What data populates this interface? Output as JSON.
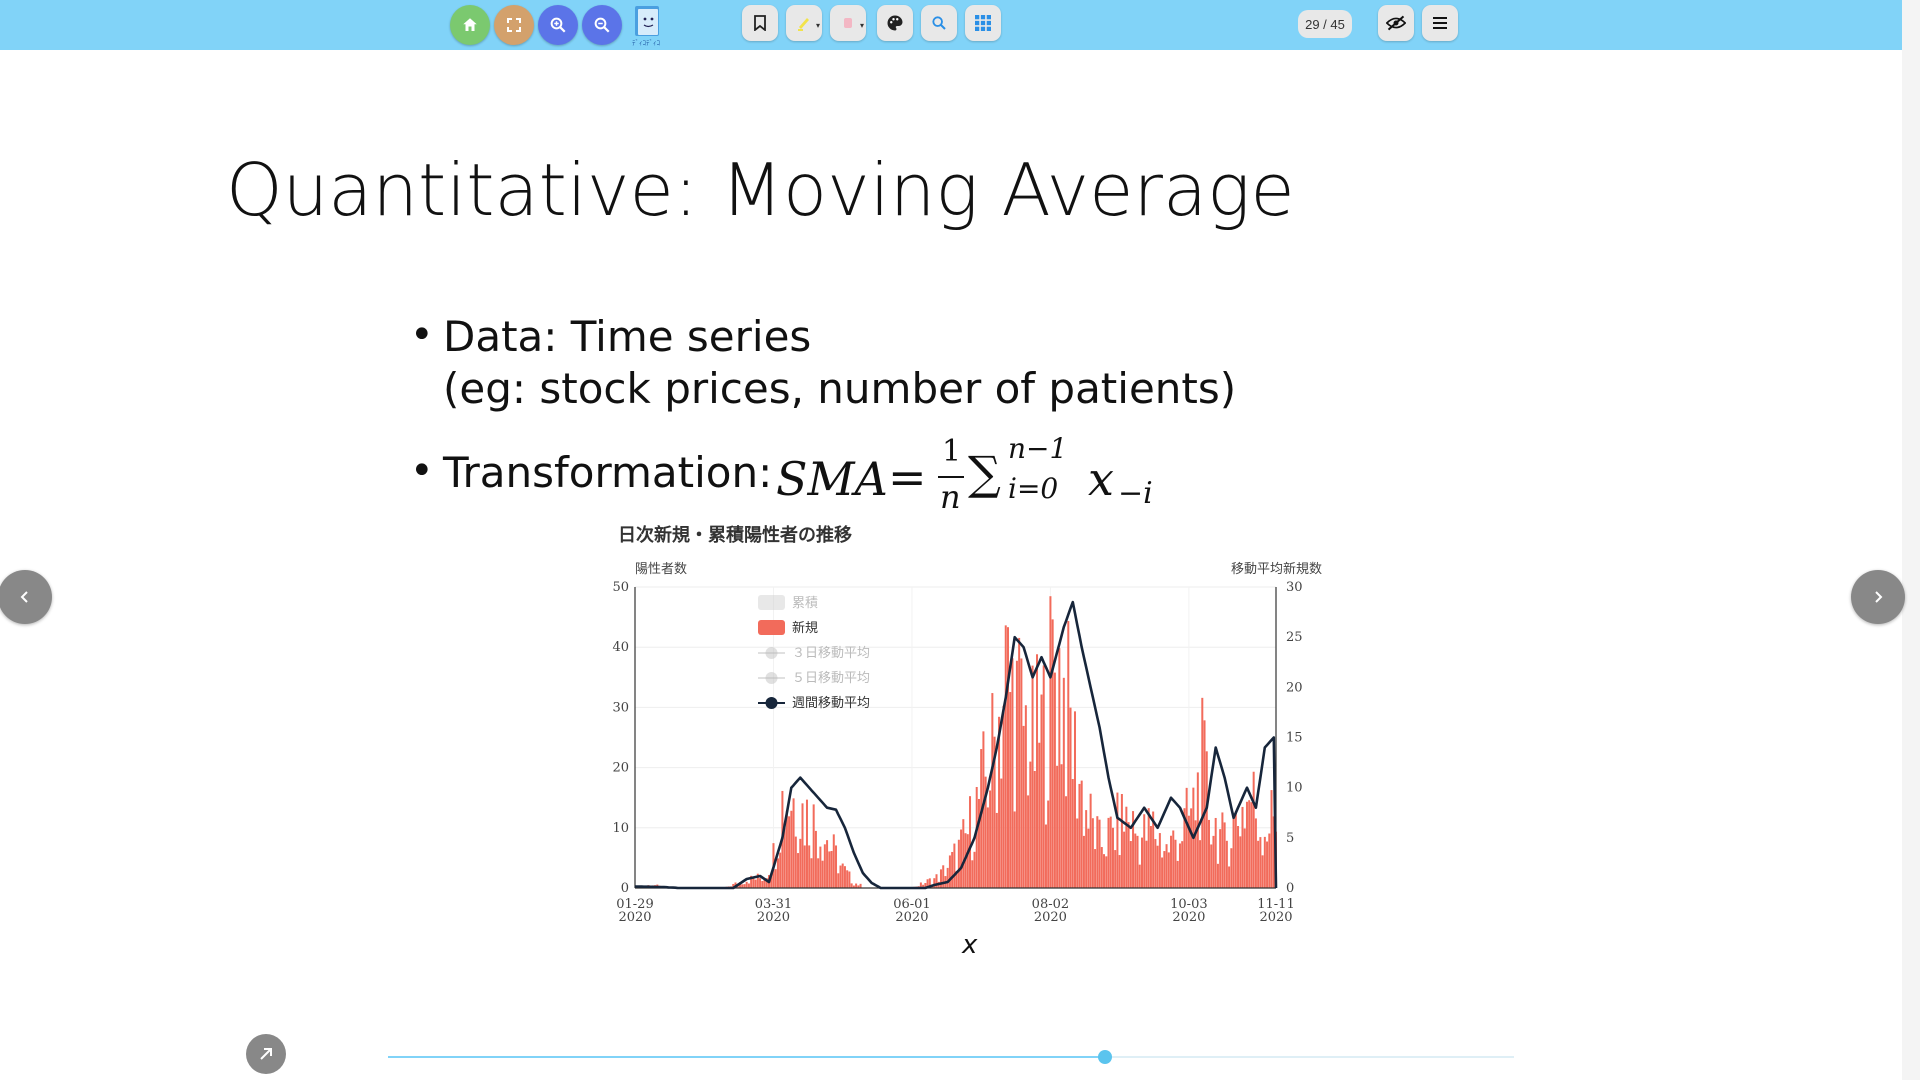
{
  "toolbar": {
    "buttons_left": [
      {
        "name": "home-button",
        "icon": "home-icon",
        "color": "#7bc96f"
      },
      {
        "name": "fullscreen-button",
        "icon": "fullscreen-icon",
        "color": "#d3a16c"
      },
      {
        "name": "zoom-in-button",
        "icon": "zoom-in-icon",
        "color": "#5b74e8"
      },
      {
        "name": "zoom-out-button",
        "icon": "zoom-out-icon",
        "color": "#5b74e8"
      }
    ],
    "logo_text": "ﾃﾞｨｺﾃﾞｨｺ",
    "pager": "29 / 45"
  },
  "slide": {
    "title": "Quantitative: Moving Average",
    "bullet1_line1": "Data: Time series",
    "bullet1_line2": "(eg: stock prices, number of patients)",
    "bullet2_label": "Transformation: ",
    "formula": {
      "lhs": "SMA",
      "equals": "=",
      "frac_num": "1",
      "frac_den": "n",
      "sigma": "∑",
      "sup": "n−1",
      "sub": "i=0",
      "term": "x",
      "term_sub": "−i"
    },
    "x_caption": "x"
  },
  "chart_data": {
    "type": "bar",
    "title": "日次新規・累積陽性者の推移",
    "ylabel": "陽性者数",
    "ylabel_right": "移動平均新規数",
    "ylim": [
      0,
      50
    ],
    "ylim_right": [
      0,
      30
    ],
    "yticks": [
      "0",
      "10",
      "20",
      "30",
      "40",
      "50"
    ],
    "yticks_right": [
      "0",
      "5",
      "10",
      "15",
      "20",
      "25",
      "30"
    ],
    "xticks": [
      {
        "date": "01-29",
        "year": "2020"
      },
      {
        "date": "03-31",
        "year": "2020"
      },
      {
        "date": "06-01",
        "year": "2020"
      },
      {
        "date": "08-02",
        "year": "2020"
      },
      {
        "date": "10-03",
        "year": "2020"
      },
      {
        "date": "11-11",
        "year": "2020"
      }
    ],
    "legend": [
      {
        "label": "累積",
        "type": "bar",
        "color": "#cccccc",
        "dimmed": true
      },
      {
        "label": "新規",
        "type": "bar",
        "color": "#f26b5b",
        "dimmed": false
      },
      {
        "label": "３日移動平均",
        "type": "line",
        "color": "#bbbbbb",
        "dimmed": true
      },
      {
        "label": "５日移動平均",
        "type": "line",
        "color": "#bbbbbb",
        "dimmed": true
      },
      {
        "label": "週間移動平均",
        "type": "line",
        "color": "#17263b",
        "dimmed": false
      }
    ],
    "series": [
      {
        "name": "新規",
        "axis": "left",
        "color": "#f26b5b",
        "day_start": 0,
        "note": "daily new cases, day 0 = 01-29",
        "keyframes": [
          [
            0,
            0
          ],
          [
            8,
            0.6
          ],
          [
            12,
            0.2
          ],
          [
            20,
            0
          ],
          [
            40,
            0
          ],
          [
            50,
            1.5
          ],
          [
            58,
            2
          ],
          [
            62,
            6
          ],
          [
            66,
            16
          ],
          [
            70,
            17
          ],
          [
            75,
            14
          ],
          [
            80,
            12
          ],
          [
            86,
            9
          ],
          [
            92,
            4
          ],
          [
            98,
            1
          ],
          [
            104,
            0
          ],
          [
            124,
            0
          ],
          [
            130,
            1
          ],
          [
            136,
            2
          ],
          [
            142,
            5
          ],
          [
            148,
            9
          ],
          [
            154,
            16
          ],
          [
            160,
            24
          ],
          [
            166,
            38
          ],
          [
            172,
            32
          ],
          [
            178,
            26
          ],
          [
            184,
            30
          ],
          [
            188,
            42
          ],
          [
            192,
            36
          ],
          [
            197,
            24
          ],
          [
            202,
            14
          ],
          [
            208,
            8
          ],
          [
            214,
            10
          ],
          [
            220,
            13
          ],
          [
            226,
            9
          ],
          [
            232,
            11
          ],
          [
            238,
            7
          ],
          [
            244,
            10
          ],
          [
            250,
            14
          ],
          [
            254,
            22
          ],
          [
            258,
            13
          ],
          [
            264,
            8
          ],
          [
            270,
            13
          ],
          [
            276,
            17
          ],
          [
            280,
            11
          ],
          [
            287,
            13
          ]
        ]
      },
      {
        "name": "週間移動平均",
        "axis": "right",
        "color": "#17263b",
        "keyframes": [
          [
            0,
            0.15
          ],
          [
            12,
            0.1
          ],
          [
            20,
            0
          ],
          [
            44,
            0
          ],
          [
            50,
            0.9
          ],
          [
            56,
            1.2
          ],
          [
            60,
            0.6
          ],
          [
            66,
            5
          ],
          [
            70,
            10
          ],
          [
            74,
            11
          ],
          [
            78,
            10
          ],
          [
            82,
            9
          ],
          [
            86,
            8
          ],
          [
            90,
            7.8
          ],
          [
            94,
            6
          ],
          [
            98,
            3.5
          ],
          [
            102,
            1.5
          ],
          [
            106,
            0.5
          ],
          [
            110,
            0
          ],
          [
            130,
            0
          ],
          [
            134,
            0.3
          ],
          [
            140,
            0.6
          ],
          [
            146,
            2
          ],
          [
            152,
            5
          ],
          [
            158,
            10
          ],
          [
            162,
            14
          ],
          [
            166,
            19
          ],
          [
            170,
            25
          ],
          [
            174,
            24
          ],
          [
            178,
            21
          ],
          [
            182,
            23
          ],
          [
            186,
            21
          ],
          [
            192,
            26
          ],
          [
            196,
            28.5
          ],
          [
            200,
            24
          ],
          [
            204,
            20
          ],
          [
            208,
            16
          ],
          [
            212,
            11
          ],
          [
            216,
            7
          ],
          [
            222,
            6
          ],
          [
            228,
            8
          ],
          [
            234,
            6
          ],
          [
            240,
            9
          ],
          [
            244,
            8
          ],
          [
            250,
            5
          ],
          [
            256,
            8
          ],
          [
            260,
            14
          ],
          [
            264,
            11
          ],
          [
            268,
            7
          ],
          [
            274,
            10
          ],
          [
            278,
            8
          ],
          [
            282,
            14
          ],
          [
            286,
            15
          ]
        ]
      }
    ],
    "x_day_range": [
      0,
      287
    ]
  }
}
